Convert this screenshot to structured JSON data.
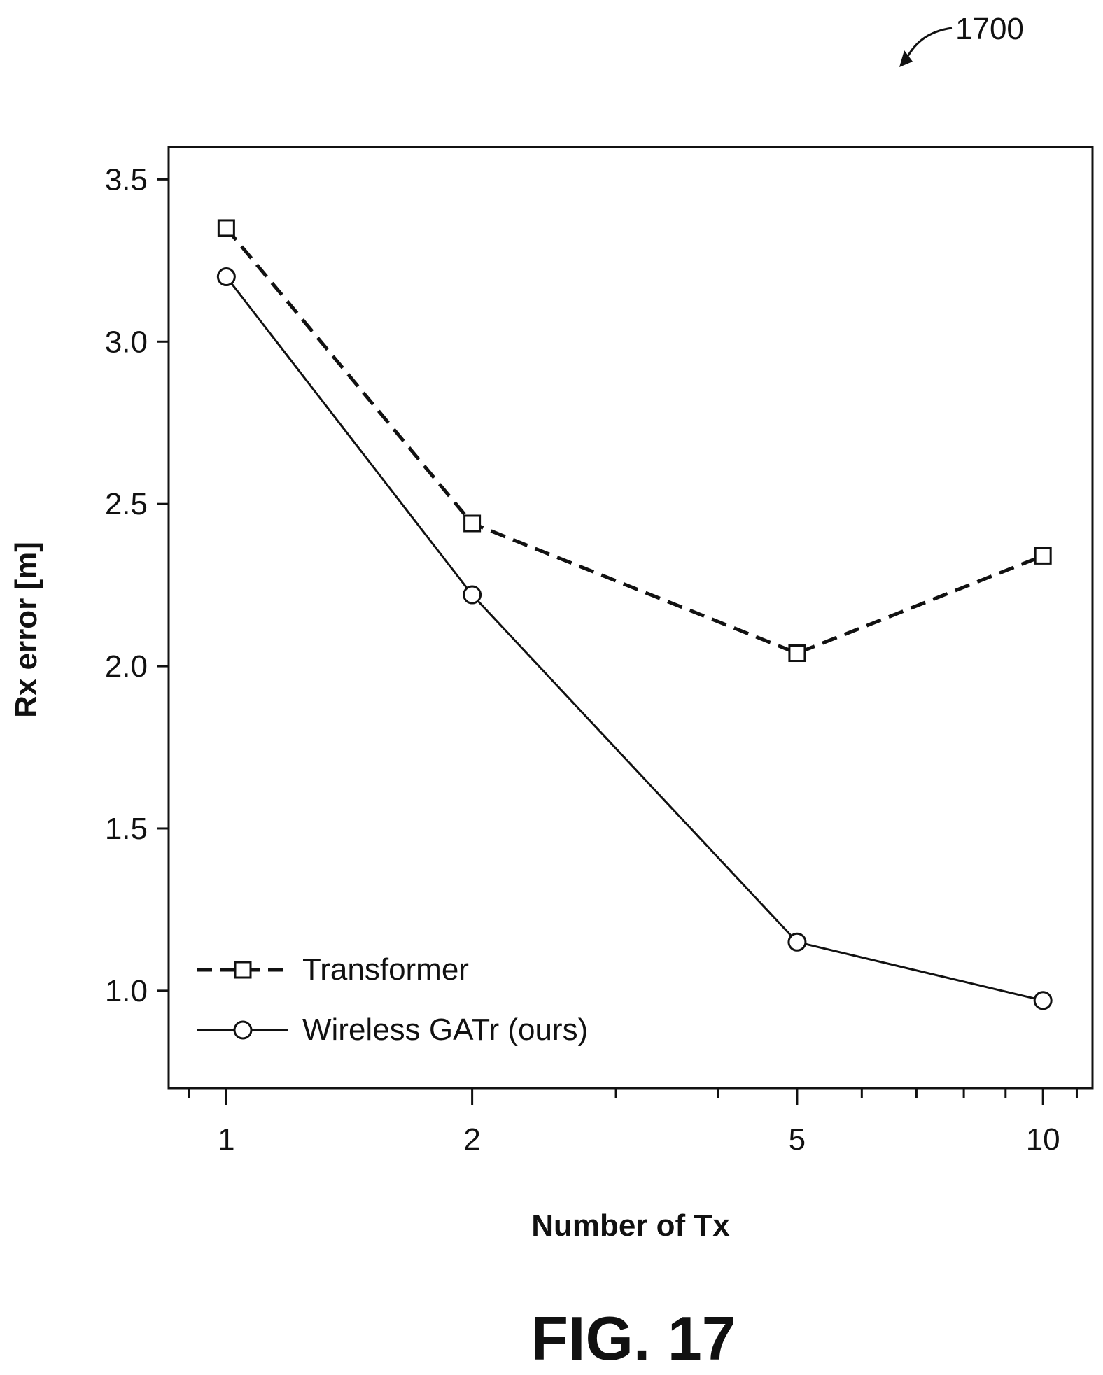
{
  "figure": {
    "reference_number": "1700",
    "caption": "FIG. 17"
  },
  "chart_data": {
    "type": "line",
    "title": "",
    "xlabel": "Number of Tx",
    "ylabel": "Rx error [m]",
    "x_scale": "log",
    "x": [
      1,
      2,
      5,
      10
    ],
    "x_ticks": [
      "1",
      "2",
      "5",
      "10"
    ],
    "xlim": [
      0.85,
      11.5
    ],
    "y_ticks": [
      "1.0",
      "1.5",
      "2.0",
      "2.5",
      "3.0",
      "3.5"
    ],
    "ylim": [
      0.7,
      3.6
    ],
    "grid": false,
    "legend_position": "bottom-left",
    "series": [
      {
        "name": "Transformer",
        "values": [
          3.35,
          2.44,
          2.04,
          2.34
        ],
        "line_style": "dashed",
        "marker": "square",
        "color": "#111111"
      },
      {
        "name": "Wireless GATr (ours)",
        "values": [
          3.2,
          2.22,
          1.15,
          0.97
        ],
        "line_style": "solid",
        "marker": "circle",
        "color": "#111111"
      }
    ]
  }
}
